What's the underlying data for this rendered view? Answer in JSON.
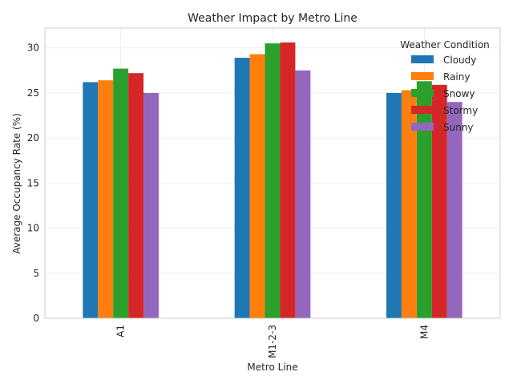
{
  "chart_data": {
    "type": "bar",
    "title": "Weather Impact by Metro Line",
    "xlabel": "Metro Line",
    "ylabel": "Average Occupancy Rate (%)",
    "categories": [
      "A1",
      "M1-2-3",
      "M4"
    ],
    "ylim": [
      0,
      32.2
    ],
    "yticks": [
      0,
      5,
      10,
      15,
      20,
      25,
      30
    ],
    "grid": true,
    "legend": {
      "title": "Weather Condition",
      "placement": "top-right"
    },
    "series": [
      {
        "name": "Cloudy",
        "color": "#1f77b4",
        "values": [
          26.2,
          28.9,
          25.0
        ]
      },
      {
        "name": "Rainy",
        "color": "#ff7f0e",
        "values": [
          26.4,
          29.3,
          25.3
        ]
      },
      {
        "name": "Snowy",
        "color": "#2ca02c",
        "values": [
          27.7,
          30.5,
          26.3
        ]
      },
      {
        "name": "Stormy",
        "color": "#d62728",
        "values": [
          27.2,
          30.6,
          25.9
        ]
      },
      {
        "name": "Sunny",
        "color": "#9467bd",
        "values": [
          25.0,
          27.5,
          24.0
        ]
      }
    ]
  }
}
